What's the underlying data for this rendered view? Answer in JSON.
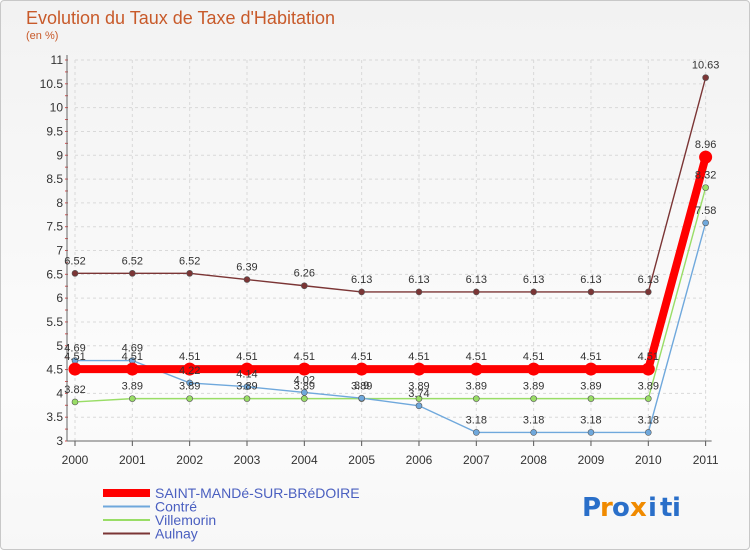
{
  "chart_data": {
    "type": "line",
    "title": "Evolution du Taux de Taxe d'Habitation",
    "unit_label": "(en %)",
    "xlabel": "",
    "ylabel": "",
    "categories": [
      "2000",
      "2001",
      "2002",
      "2003",
      "2004",
      "2005",
      "2006",
      "2007",
      "2008",
      "2009",
      "2010",
      "2011"
    ],
    "ylim": [
      3,
      11
    ],
    "yticks": [
      "3",
      "3.5",
      "4",
      "4.5",
      "5",
      "5.5",
      "6",
      "6.5",
      "7",
      "7.5",
      "8",
      "8.5",
      "9",
      "9.5",
      "10",
      "10.5",
      "11"
    ],
    "grid": true,
    "legend_position": "bottom-left",
    "series": [
      {
        "name": "SAINT-MANDé-SUR-BRéDOIRE",
        "color": "#ff0000",
        "values": [
          4.51,
          4.51,
          4.51,
          4.51,
          4.51,
          4.51,
          4.51,
          4.51,
          4.51,
          4.51,
          4.51,
          8.96
        ],
        "labels": [
          "4.51",
          "4.51",
          "4.51",
          "4.51",
          "4.51",
          "4.51",
          "4.51",
          "4.51",
          "4.51",
          "4.51",
          "4.51",
          "8.96"
        ]
      },
      {
        "name": "Contré",
        "color": "#6fa8dc",
        "values": [
          4.69,
          4.69,
          4.22,
          4.14,
          4.02,
          3.9,
          3.74,
          3.18,
          3.18,
          3.18,
          3.18,
          7.58
        ],
        "labels": [
          "4.69",
          "4.69",
          "4.22",
          "4.14",
          "4.02",
          "3.9",
          "3.74",
          "3.18",
          "3.18",
          "3.18",
          "3.18",
          "7.58"
        ]
      },
      {
        "name": "Villemorin",
        "color": "#99dd66",
        "values": [
          3.82,
          3.89,
          3.89,
          3.89,
          3.89,
          3.89,
          3.89,
          3.89,
          3.89,
          3.89,
          3.89,
          8.32
        ],
        "labels": [
          "3.82",
          "3.89",
          "3.89",
          "3.89",
          "3.89",
          "3.89",
          "3.89",
          "3.89",
          "3.89",
          "3.89",
          "3.89",
          "8.32"
        ]
      },
      {
        "name": "Aulnay",
        "color": "#7b3535",
        "values": [
          6.52,
          6.52,
          6.52,
          6.39,
          6.26,
          6.13,
          6.13,
          6.13,
          6.13,
          6.13,
          6.13,
          10.63
        ],
        "labels": [
          "6.52",
          "6.52",
          "6.52",
          "6.39",
          "6.26",
          "6.13",
          "6.13",
          "6.13",
          "6.13",
          "6.13",
          "6.13",
          "10.63"
        ]
      }
    ]
  },
  "logo": {
    "text": "Proxiti",
    "letters": [
      "P",
      "r",
      "o",
      "x",
      "i",
      "t",
      "i"
    ],
    "colors": [
      "#2a6fc9",
      "#f08a00",
      "#2a6fc9",
      "#f08a00",
      "#2a6fc9",
      "#2a6fc9",
      "#2a6fc9"
    ]
  }
}
